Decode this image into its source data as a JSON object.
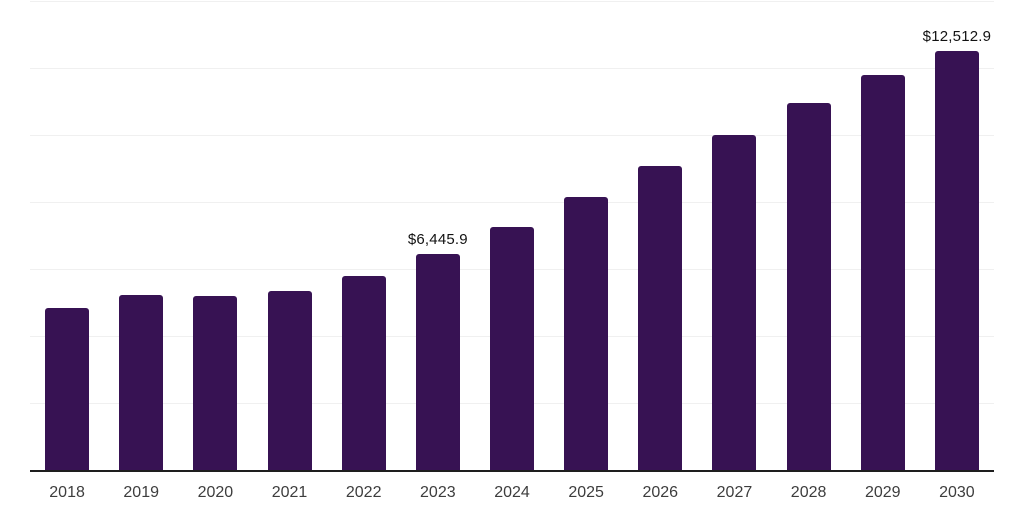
{
  "chart_data": {
    "type": "bar",
    "title": "",
    "xlabel": "",
    "ylabel": "",
    "categories": [
      "2018",
      "2019",
      "2020",
      "2021",
      "2022",
      "2023",
      "2024",
      "2025",
      "2026",
      "2027",
      "2028",
      "2029",
      "2030"
    ],
    "values": [
      4840,
      5235,
      5195,
      5355,
      5790,
      6445.9,
      7250,
      8145,
      9070,
      10005,
      10960,
      11790,
      12512.9
    ],
    "data_labels": [
      "",
      "",
      "",
      "",
      "",
      "$6,445.9",
      "",
      "",
      "",
      "",
      "",
      "",
      "$12,512.9"
    ],
    "ylim": [
      0,
      14000
    ],
    "gridline_values": [
      2000,
      4000,
      6000,
      8000,
      10000,
      12000,
      14000
    ],
    "grid": "horizontal",
    "legend": "none",
    "bar_color": "#371253",
    "gridline_color": "#f0f0f0",
    "axis_line_color": "#1e1e1e",
    "tick_label_color": "#3d3d3d",
    "data_label_color": "#121212",
    "background_color": "#ffffff"
  }
}
